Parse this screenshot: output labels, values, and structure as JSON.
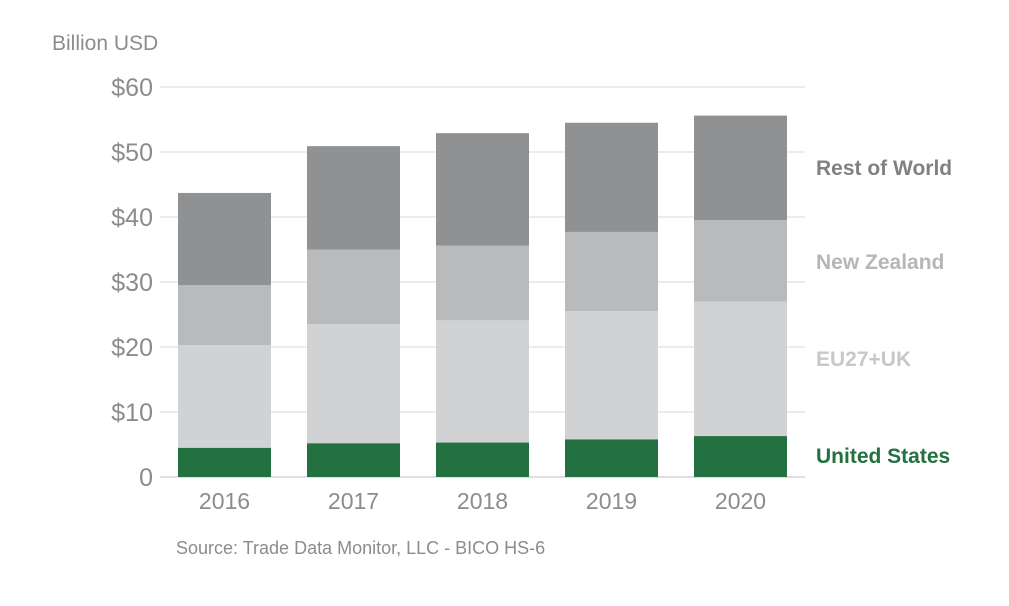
{
  "chart_data": {
    "type": "bar",
    "stacked": true,
    "ylabel": "Billion USD",
    "yticks": [
      "0",
      "$10",
      "$20",
      "$30",
      "$40",
      "$50",
      "$60"
    ],
    "ylim": [
      0,
      60
    ],
    "ystep": 10,
    "grid": true,
    "legend_position": "right",
    "categories": [
      "2016",
      "2017",
      "2018",
      "2019",
      "2020"
    ],
    "series": [
      {
        "name": "United States",
        "color": "#237040",
        "values": [
          4.5,
          5.2,
          5.3,
          5.8,
          6.3
        ]
      },
      {
        "name": "EU27+UK",
        "color": "#d1d2d4",
        "values": [
          15.8,
          18.3,
          18.8,
          19.7,
          20.7
        ]
      },
      {
        "name": "New Zealand",
        "color": "#b9babc",
        "values": [
          9.2,
          11.5,
          11.5,
          12.2,
          12.5
        ]
      },
      {
        "name": "Rest of World",
        "color": "#909193",
        "values": [
          14.2,
          15.9,
          17.3,
          16.8,
          16.1
        ]
      }
    ],
    "source": "Source: Trade Data Monitor, LLC - BICO HS-6"
  }
}
